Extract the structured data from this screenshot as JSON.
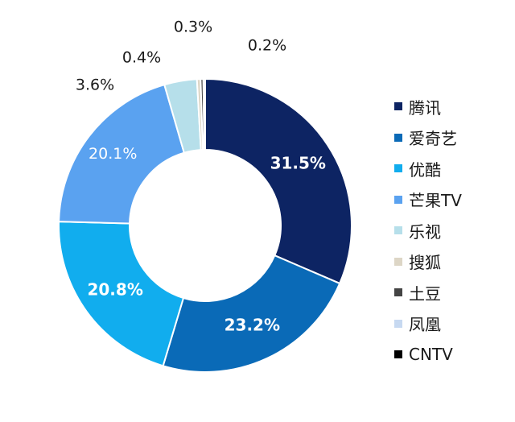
{
  "chart_data": {
    "type": "pie",
    "donut": true,
    "legend_position": "right",
    "series": [
      {
        "name": "腾讯",
        "value": 31.5,
        "label": "31.5%",
        "color": "#0d2463"
      },
      {
        "name": "爱奇艺",
        "value": 23.2,
        "label": "23.2%",
        "color": "#0a6ab7"
      },
      {
        "name": "优酷",
        "value": 20.8,
        "label": "20.8%",
        "color": "#11adee"
      },
      {
        "name": "芒果TV",
        "value": 20.1,
        "label": "20.1%",
        "color": "#5aa2f0"
      },
      {
        "name": "乐视",
        "value": 3.6,
        "label": "3.6%",
        "color": "#b6dfea"
      },
      {
        "name": "搜狐",
        "value": 0.4,
        "label": "0.4%",
        "color": "#ddd6c6"
      },
      {
        "name": "土豆",
        "value": 0.3,
        "label": "0.3%",
        "color": "#444444"
      },
      {
        "name": "凤凰",
        "value": 0.2,
        "label": "0.2%",
        "color": "#c7d9f1"
      },
      {
        "name": "CNTV",
        "value": 0.0,
        "label": "",
        "color": "#000000"
      }
    ]
  }
}
